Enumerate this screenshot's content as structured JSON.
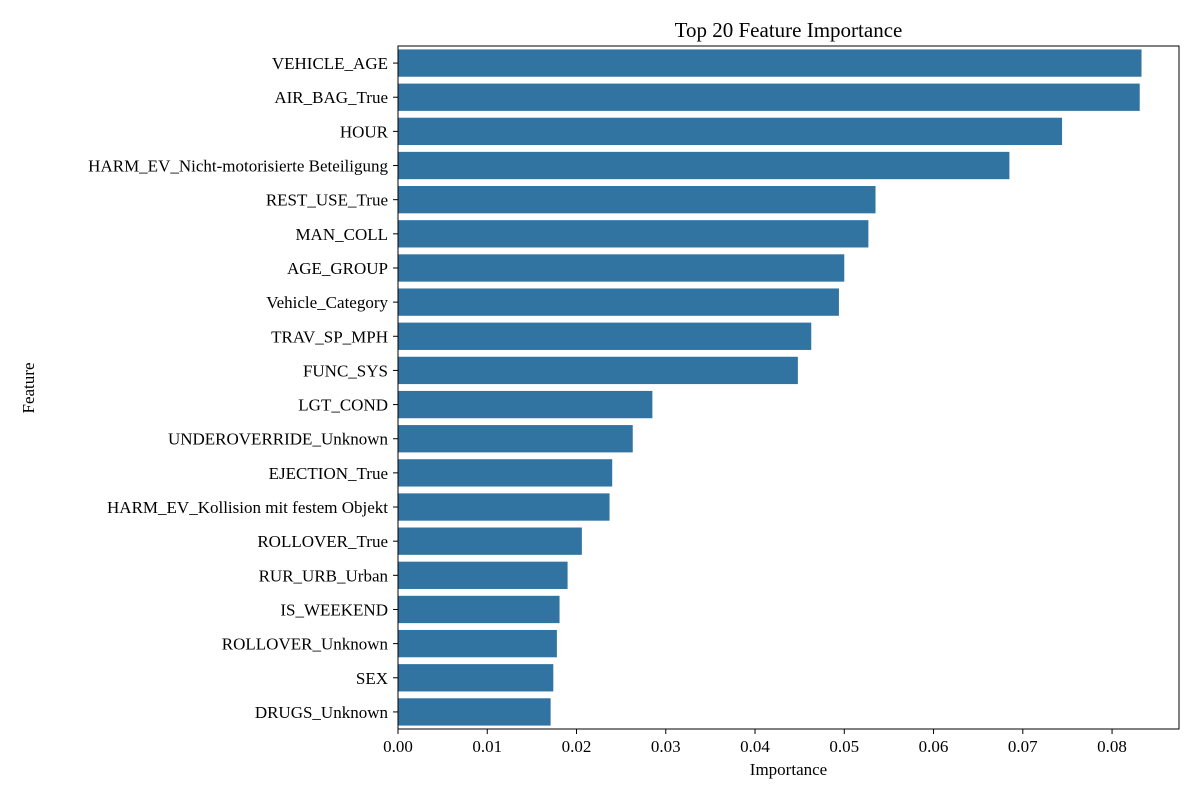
{
  "chart_data": {
    "type": "bar",
    "orientation": "horizontal",
    "title": "Top 20 Feature Importance",
    "xlabel": "Importance",
    "ylabel": "Feature",
    "xlim": [
      0,
      0.0875
    ],
    "xticks": [
      0.0,
      0.01,
      0.02,
      0.03,
      0.04,
      0.05,
      0.06,
      0.07,
      0.08
    ],
    "xtick_labels": [
      "0.00",
      "0.01",
      "0.02",
      "0.03",
      "0.04",
      "0.05",
      "0.06",
      "0.07",
      "0.08"
    ],
    "grid": false,
    "bar_color": "#3274a1",
    "categories": [
      "VEHICLE_AGE",
      "AIR_BAG_True",
      "HOUR",
      "HARM_EV_Nicht-motorisierte Beteiligung",
      "REST_USE_True",
      "MAN_COLL",
      "AGE_GROUP",
      "Vehicle_Category",
      "TRAV_SP_MPH",
      "FUNC_SYS",
      "LGT_COND",
      "UNDEROVERRIDE_Unknown",
      "EJECTION_True",
      "HARM_EV_Kollision mit festem Objekt",
      "ROLLOVER_True",
      "RUR_URB_Urban",
      "IS_WEEKEND",
      "ROLLOVER_Unknown",
      "SEX",
      "DRUGS_Unknown"
    ],
    "values": [
      0.0833,
      0.0831,
      0.0744,
      0.0685,
      0.0535,
      0.0527,
      0.05,
      0.0494,
      0.0463,
      0.0448,
      0.0285,
      0.0263,
      0.024,
      0.0237,
      0.0206,
      0.019,
      0.0181,
      0.0178,
      0.0174,
      0.0171
    ]
  }
}
